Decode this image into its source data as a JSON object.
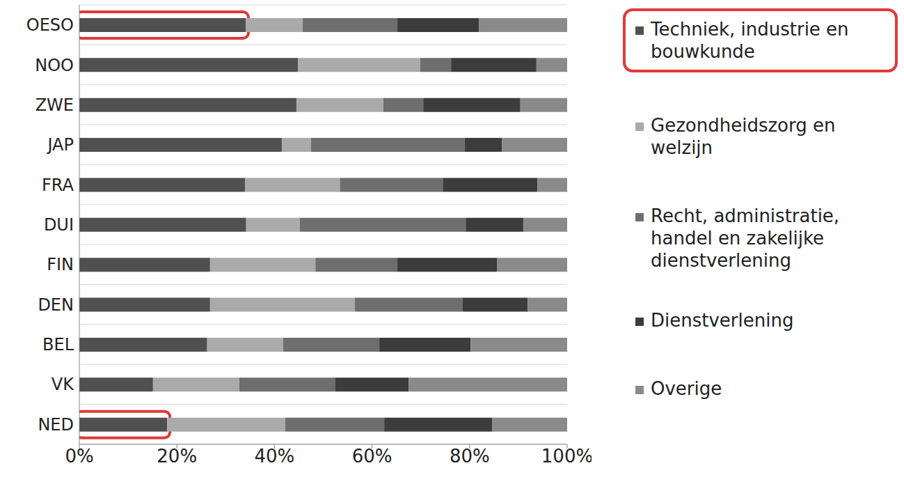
{
  "chart_data": {
    "type": "bar",
    "orientation": "horizontal",
    "stacked": true,
    "grid": true,
    "legend": "right",
    "categories": [
      "OESO",
      "NOO",
      "ZWE",
      "JAP",
      "FRA",
      "DUI",
      "FIN",
      "DEN",
      "BEL",
      "VK",
      "NED"
    ],
    "series": [
      {
        "name": "Techniek, industrie en bouwkunde",
        "color": "#505050",
        "values": [
          34.1,
          44.8,
          44.5,
          41.5,
          34.0,
          34.2,
          26.8,
          26.8,
          26.2,
          15.1,
          18.0
        ]
      },
      {
        "name": "Gezondheidszorg en welzijn",
        "color": "#aaaaaa",
        "values": [
          11.7,
          25.1,
          17.8,
          6.0,
          19.4,
          11.0,
          21.6,
          29.7,
          15.6,
          17.7,
          24.2
        ]
      },
      {
        "name": "Recht, administratie, handel en zakelijke dienstverlening",
        "color": "#6e6e6e",
        "values": [
          19.4,
          6.3,
          8.2,
          31.5,
          21.1,
          34.0,
          16.8,
          22.1,
          19.7,
          19.6,
          20.3
        ]
      },
      {
        "name": "Dienstverlening",
        "color": "#3c3c3c",
        "values": [
          16.7,
          17.5,
          19.9,
          7.6,
          19.4,
          11.8,
          20.4,
          13.3,
          18.7,
          15.1,
          22.1
        ]
      },
      {
        "name": "Overige",
        "color": "#8a8a8a",
        "values": [
          18.1,
          6.3,
          9.6,
          13.4,
          6.1,
          9.0,
          14.4,
          8.1,
          19.8,
          32.5,
          15.4
        ]
      }
    ],
    "xlim": [
      0,
      100
    ],
    "xticks": [
      {
        "value": 0,
        "label": "0%"
      },
      {
        "value": 20,
        "label": "20%"
      },
      {
        "value": 40,
        "label": "40%"
      },
      {
        "value": 60,
        "label": "60%"
      },
      {
        "value": 80,
        "label": "80%"
      },
      {
        "value": 100,
        "label": "100%"
      }
    ]
  }
}
